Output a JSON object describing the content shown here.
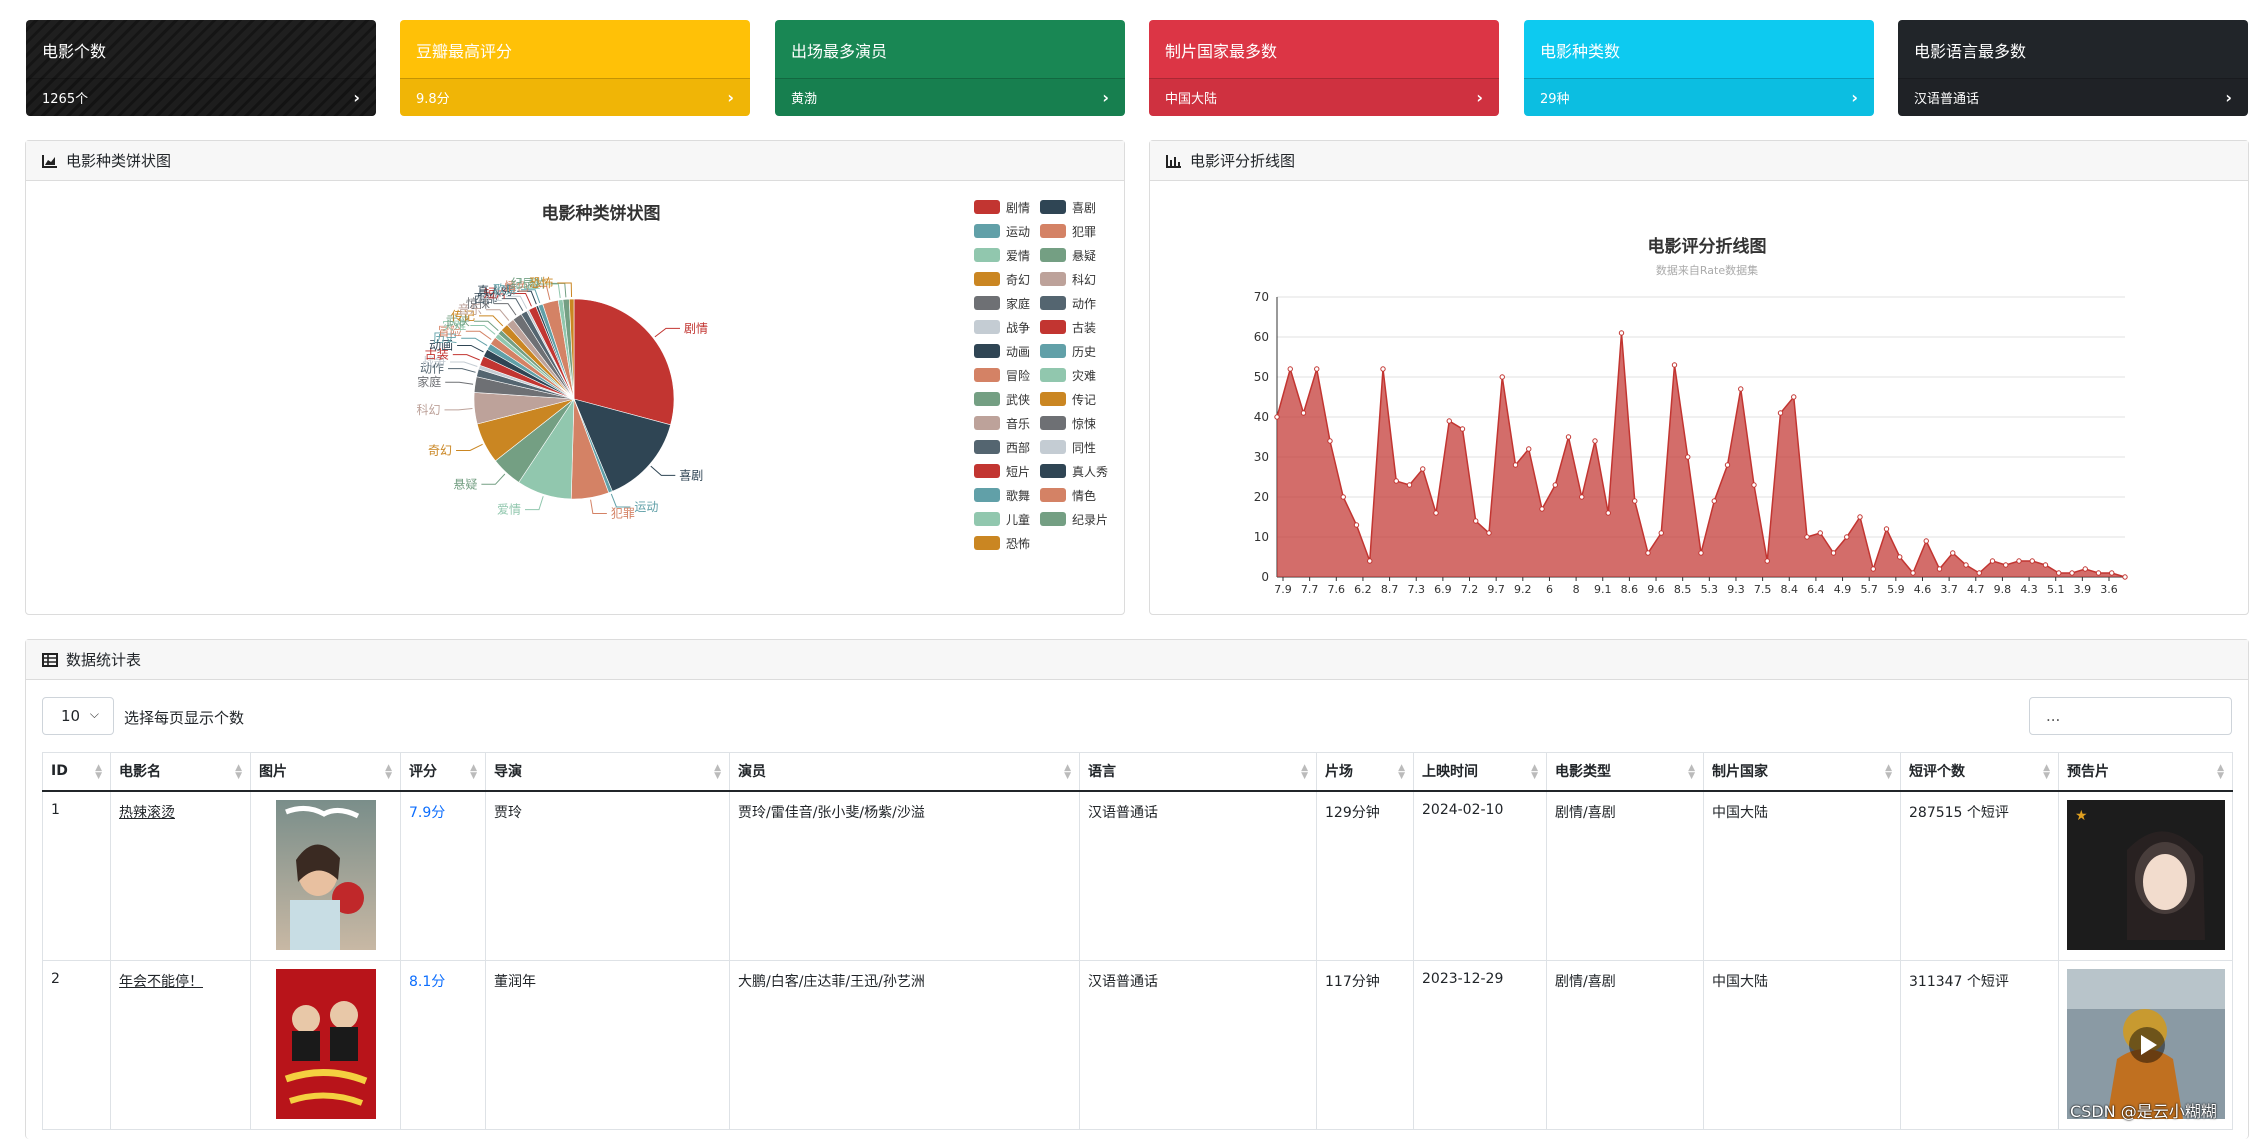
{
  "cards": [
    {
      "title": "电影个数",
      "value": "1265个",
      "color": "black"
    },
    {
      "title": "豆瓣最高评分",
      "value": "9.8分",
      "color": "yellow"
    },
    {
      "title": "出场最多演员",
      "value": "黄渤",
      "color": "green"
    },
    {
      "title": "制片国家最多数",
      "value": "中国大陆",
      "color": "red"
    },
    {
      "title": "电影种类数",
      "value": "29种",
      "color": "cyan"
    },
    {
      "title": "电影语言最多数",
      "value": "汉语普通话",
      "color": "dark"
    }
  ],
  "pie_panel": {
    "header": "电影种类饼状图"
  },
  "line_panel": {
    "header": "电影评分折线图"
  },
  "table_panel": {
    "header": "数据统计表",
    "page_size": "10",
    "page_size_label": "选择每页显示个数",
    "search_value": "...",
    "columns": [
      "ID",
      "电影名",
      "图片",
      "评分",
      "导演",
      "演员",
      "语言",
      "片场",
      "上映时间",
      "电影类型",
      "制片国家",
      "短评个数",
      "预告片"
    ],
    "rows": [
      {
        "id": "1",
        "name": "热辣滚烫",
        "score": "7.9分",
        "director": "贾玲",
        "actors": "贾玲/雷佳音/张小斐/杨紫/沙溢",
        "language": "汉语普通话",
        "duration": "129分钟",
        "release": "2024-02-10",
        "genre": "剧情/喜剧",
        "country": "中国大陆",
        "comments": "287515 个短评"
      },
      {
        "id": "2",
        "name": "年会不能停！",
        "score": "8.1分",
        "director": "董润年",
        "actors": "大鹏/白客/庄达菲/王迅/孙艺洲",
        "language": "汉语普通话",
        "duration": "117分钟",
        "release": "2023-12-29",
        "genre": "剧情/喜剧",
        "country": "中国大陆",
        "comments": "311347 个短评"
      }
    ]
  },
  "watermark": "CSDN @是云小糊糊",
  "chart_data": [
    {
      "type": "pie",
      "title": "电影种类饼状图",
      "labels": [
        "剧情",
        "喜剧",
        "运动",
        "犯罪",
        "爱情",
        "悬疑",
        "奇幻",
        "科幻",
        "家庭",
        "动作",
        "战争",
        "古装",
        "动画",
        "历史",
        "冒险",
        "灾难",
        "武侠",
        "传记",
        "音乐",
        "惊悚",
        "西部",
        "同性",
        "短片",
        "真人秀",
        "歌舞",
        "情色",
        "儿童",
        "纪录片",
        "恐怖"
      ],
      "values": [
        230,
        115,
        5,
        48,
        70,
        40,
        52,
        40,
        20,
        10,
        5,
        12,
        10,
        8,
        10,
        6,
        6,
        10,
        10,
        12,
        8,
        3,
        10,
        3,
        6,
        20,
        6,
        8,
        6
      ],
      "colors": [
        "#c23531",
        "#2f4554",
        "#61a0a8",
        "#d48265",
        "#91c7ae",
        "#749f83",
        "#ca8622",
        "#bda29a",
        "#6e7074",
        "#546570",
        "#c4ccd3",
        "#c23531",
        "#2f4554",
        "#61a0a8",
        "#d48265",
        "#91c7ae",
        "#749f83",
        "#ca8622",
        "#bda29a",
        "#6e7074",
        "#546570",
        "#c4ccd3",
        "#c23531",
        "#2f4554",
        "#61a0a8",
        "#d48265",
        "#91c7ae",
        "#749f83",
        "#ca8622"
      ],
      "legend_position": "right"
    },
    {
      "type": "area",
      "title": "电影评分折线图",
      "subtitle": "数据来自Rate数据集",
      "ylim": [
        0,
        70
      ],
      "yticks": [
        0,
        10,
        20,
        30,
        40,
        50,
        60,
        70
      ],
      "x_tick_labels": [
        "7.9",
        "7.7",
        "7.6",
        "6.2",
        "8.7",
        "7.3",
        "6.9",
        "7.2",
        "9.7",
        "9.2",
        "6",
        "8",
        "9.1",
        "8.6",
        "9.6",
        "8.5",
        "5.3",
        "9.3",
        "7.5",
        "8.4",
        "6.4",
        "4.9",
        "5.7",
        "5.9",
        "4.6",
        "3.7",
        "4.7",
        "9.8",
        "4.3",
        "5.1",
        "3.9",
        "3.6"
      ],
      "values": [
        40,
        52,
        41,
        52,
        34,
        20,
        13,
        4,
        52,
        24,
        23,
        27,
        16,
        39,
        37,
        14,
        11,
        50,
        28,
        32,
        17,
        23,
        35,
        20,
        34,
        16,
        61,
        19,
        6,
        11,
        53,
        30,
        6,
        19,
        28,
        47,
        23,
        4,
        41,
        45,
        10,
        11,
        6,
        10,
        15,
        2,
        12,
        5,
        1,
        9,
        2,
        6,
        3,
        1,
        4,
        3,
        4,
        4,
        3,
        1,
        1,
        2,
        1,
        1,
        0
      ],
      "color": "#c23531",
      "grid": true
    }
  ]
}
